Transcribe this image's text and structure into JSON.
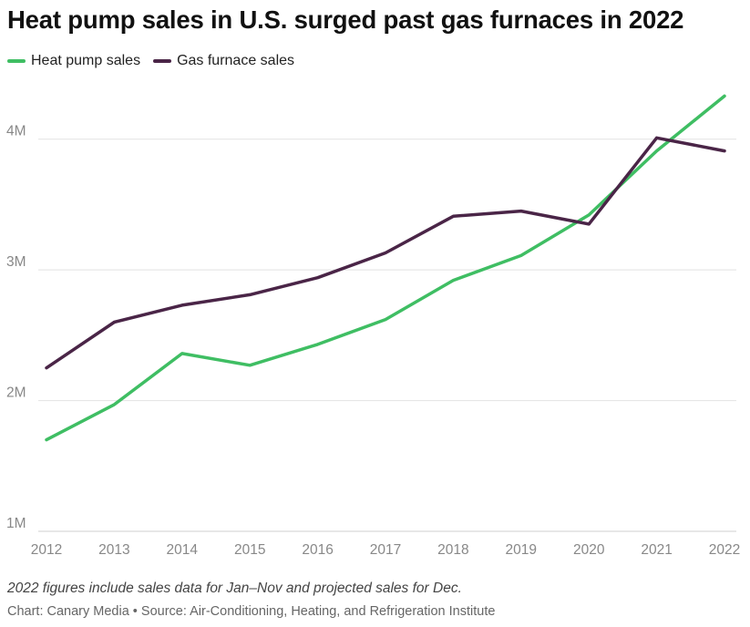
{
  "title": "Heat pump sales in U.S. surged past gas furnaces in 2022",
  "note": "2022 figures include sales data for Jan–Nov and projected sales for Dec.",
  "credit": "Chart: Canary Media • Source: Air-Conditioning, Heating, and Refrigeration Institute",
  "chart_data": {
    "type": "line",
    "x": [
      "2012",
      "2013",
      "2014",
      "2015",
      "2016",
      "2017",
      "2018",
      "2019",
      "2020",
      "2021",
      "2022"
    ],
    "ylim": [
      1000000,
      4500000
    ],
    "yticks": [
      1000000,
      2000000,
      3000000,
      4000000
    ],
    "ytick_labels": [
      "1M",
      "2M",
      "3M",
      "4M"
    ],
    "grid": true,
    "legend_position": "top-left",
    "series": [
      {
        "name": "Heat pump sales",
        "color": "#3fbe63",
        "values": [
          1700000,
          1970000,
          2360000,
          2270000,
          2430000,
          2620000,
          2920000,
          3110000,
          3420000,
          3910000,
          4330000
        ]
      },
      {
        "name": "Gas furnace sales",
        "color": "#4a2547",
        "values": [
          2250000,
          2600000,
          2730000,
          2810000,
          2940000,
          3130000,
          3410000,
          3450000,
          3350000,
          4010000,
          3910000
        ]
      }
    ]
  }
}
